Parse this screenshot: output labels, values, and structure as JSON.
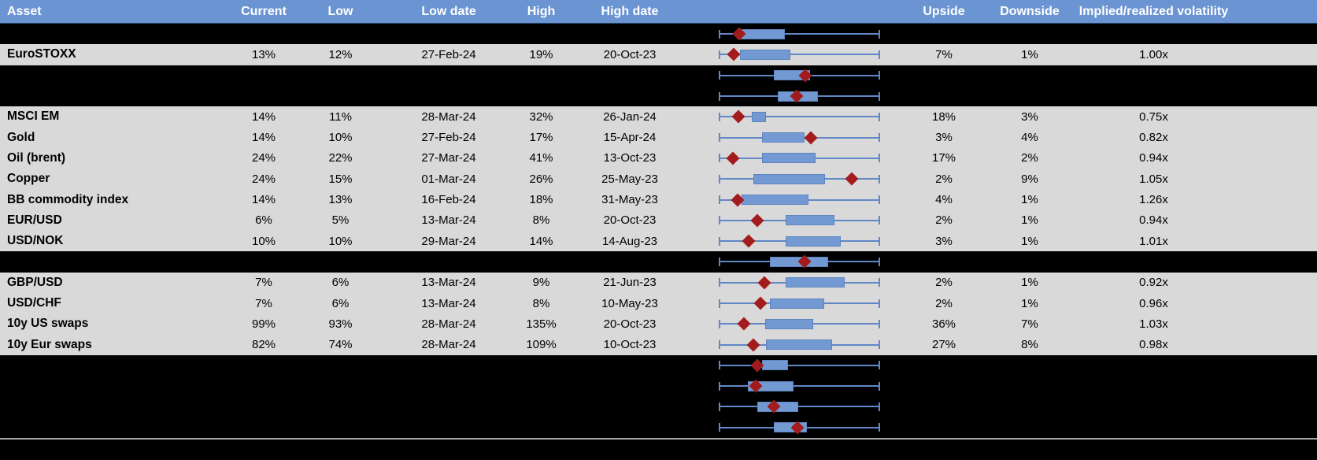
{
  "header": {
    "columns": {
      "asset": "Asset",
      "current": "Current",
      "low": "Low",
      "low_date": "Low date",
      "high": "High",
      "high_date": "High date",
      "upside": "Upside",
      "downside": "Downside",
      "implied_realized": "Implied/realized volatility"
    }
  },
  "colors": {
    "header_bg": "#6b94d2",
    "row_bg": "#d9d9d9",
    "blackout_bg": "#000000",
    "whisker": "#6187c6",
    "box_fill": "#7299d1",
    "box_border": "#5d84c0",
    "marker": "#a21c1e",
    "separator": "#a8a8a8",
    "header_text": "#ffffff",
    "cell_text": "#000000"
  },
  "chart_note": "Each row holds a horizontal box-whisker plot normalized 0-1 across the plot area; b0/b1 = box start/end, m = red diamond (current) position.",
  "rows": [
    {
      "type": "hidden",
      "plot": {
        "b0": 0.13,
        "b1": 0.41,
        "m": 0.125
      }
    },
    {
      "type": "data",
      "asset": "EuroSTOXX",
      "current": "13%",
      "low": "12%",
      "low_date": "27-Feb-24",
      "high": "19%",
      "high_date": "20-Oct-23",
      "upside": "7%",
      "downside": "1%",
      "implied_realized": "1.00x",
      "plot": {
        "b0": 0.132,
        "b1": 0.444,
        "m": 0.093
      }
    },
    {
      "type": "hidden",
      "plot": {
        "b0": 0.341,
        "b1": 0.566,
        "m": 0.537
      }
    },
    {
      "type": "hidden",
      "plot": {
        "b0": 0.366,
        "b1": 0.615,
        "m": 0.483
      }
    },
    {
      "type": "data",
      "asset": "MSCI EM",
      "current": "14%",
      "low": "11%",
      "low_date": "28-Mar-24",
      "high": "32%",
      "high_date": "26-Jan-24",
      "upside": "18%",
      "downside": "3%",
      "implied_realized": "0.75x",
      "plot": {
        "b0": 0.205,
        "b1": 0.293,
        "m": 0.122
      }
    },
    {
      "type": "data",
      "asset": "Gold",
      "current": "14%",
      "low": "10%",
      "low_date": "27-Feb-24",
      "high": "17%",
      "high_date": "15-Apr-24",
      "upside": "3%",
      "downside": "4%",
      "implied_realized": "0.82x",
      "plot": {
        "b0": 0.268,
        "b1": 0.532,
        "m": 0.571
      }
    },
    {
      "type": "data",
      "asset": "Oil (brent)",
      "current": "24%",
      "low": "22%",
      "low_date": "27-Mar-24",
      "high": "41%",
      "high_date": "13-Oct-23",
      "upside": "17%",
      "downside": "2%",
      "implied_realized": "0.94x",
      "plot": {
        "b0": 0.268,
        "b1": 0.6,
        "m": 0.088
      }
    },
    {
      "type": "data",
      "asset": "Copper",
      "current": "24%",
      "low": "15%",
      "low_date": "01-Mar-24",
      "high": "26%",
      "high_date": "25-May-23",
      "upside": "2%",
      "downside": "9%",
      "implied_realized": "1.05x",
      "plot": {
        "b0": 0.215,
        "b1": 0.659,
        "m": 0.824
      }
    },
    {
      "type": "data",
      "asset": "BB commodity index",
      "current": "14%",
      "low": "13%",
      "low_date": "16-Feb-24",
      "high": "18%",
      "high_date": "31-May-23",
      "upside": "4%",
      "downside": "1%",
      "implied_realized": "1.26x",
      "plot": {
        "b0": 0.141,
        "b1": 0.556,
        "m": 0.117
      }
    },
    {
      "type": "data",
      "asset": "EUR/USD",
      "current": "6%",
      "low": "5%",
      "low_date": "13-Mar-24",
      "high": "8%",
      "high_date": "20-Oct-23",
      "upside": "2%",
      "downside": "1%",
      "implied_realized": "0.94x",
      "plot": {
        "b0": 0.415,
        "b1": 0.717,
        "m": 0.239
      }
    },
    {
      "type": "data",
      "asset": "USD/NOK",
      "current": "10%",
      "low": "10%",
      "low_date": "29-Mar-24",
      "high": "14%",
      "high_date": "14-Aug-23",
      "upside": "3%",
      "downside": "1%",
      "implied_realized": "1.01x",
      "plot": {
        "b0": 0.415,
        "b1": 0.756,
        "m": 0.185
      }
    },
    {
      "type": "hidden",
      "plot": {
        "b0": 0.317,
        "b1": 0.678,
        "m": 0.532
      }
    },
    {
      "type": "data",
      "asset": "GBP/USD",
      "current": "7%",
      "low": "6%",
      "low_date": "13-Mar-24",
      "high": "9%",
      "high_date": "21-Jun-23",
      "upside": "2%",
      "downside": "1%",
      "implied_realized": "0.92x",
      "plot": {
        "b0": 0.415,
        "b1": 0.78,
        "m": 0.283
      }
    },
    {
      "type": "data",
      "asset": "USD/CHF",
      "current": "7%",
      "low": "6%",
      "low_date": "13-Mar-24",
      "high": "8%",
      "high_date": "10-May-23",
      "upside": "2%",
      "downside": "1%",
      "implied_realized": "0.96x",
      "plot": {
        "b0": 0.317,
        "b1": 0.654,
        "m": 0.259
      }
    },
    {
      "type": "data",
      "asset": "10y US swaps",
      "current": "99%",
      "low": "93%",
      "low_date": "28-Mar-24",
      "high": "135%",
      "high_date": "20-Oct-23",
      "upside": "36%",
      "downside": "7%",
      "implied_realized": "1.03x",
      "plot": {
        "b0": 0.288,
        "b1": 0.585,
        "m": 0.156
      }
    },
    {
      "type": "data",
      "asset": "10y Eur swaps",
      "current": "82%",
      "low": "74%",
      "low_date": "28-Mar-24",
      "high": "109%",
      "high_date": "10-Oct-23",
      "upside": "27%",
      "downside": "8%",
      "implied_realized": "0.98x",
      "plot": {
        "b0": 0.293,
        "b1": 0.702,
        "m": 0.215
      }
    },
    {
      "type": "hidden",
      "plot": {
        "b0": 0.268,
        "b1": 0.429,
        "m": 0.239
      }
    },
    {
      "type": "hidden",
      "plot": {
        "b0": 0.18,
        "b1": 0.463,
        "m": 0.229
      }
    },
    {
      "type": "hidden",
      "plot": {
        "b0": 0.239,
        "b1": 0.493,
        "m": 0.341
      }
    },
    {
      "type": "hidden",
      "plot": {
        "b0": 0.341,
        "b1": 0.546,
        "m": 0.488
      }
    }
  ]
}
